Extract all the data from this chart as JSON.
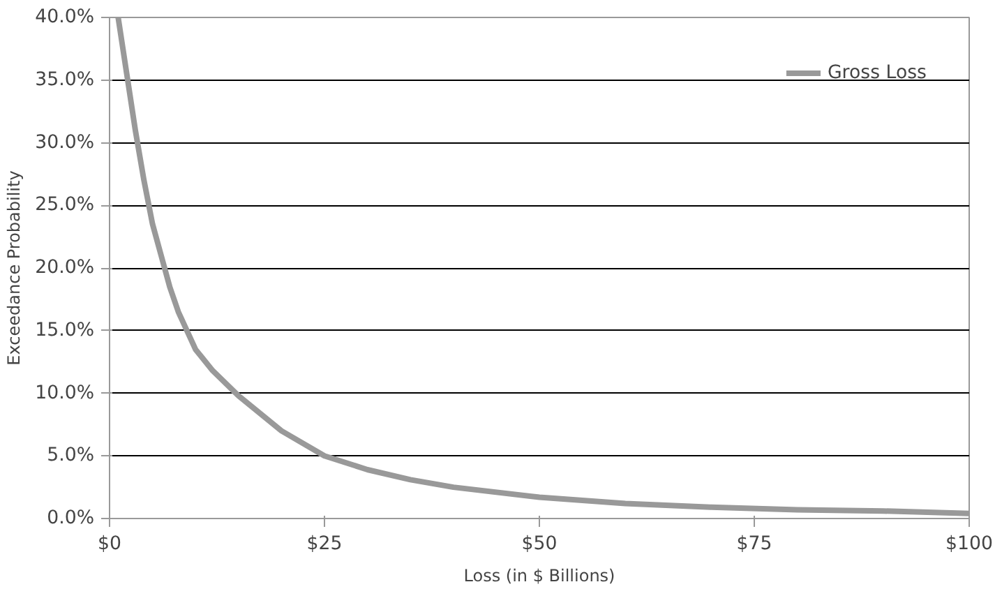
{
  "chart_data": {
    "type": "line",
    "xlabel": "Loss (in $ Billions)",
    "ylabel": "Exceedance Probability",
    "series": [
      {
        "name": "Gross Loss",
        "color": "#999999",
        "x": [
          1,
          2,
          3,
          4,
          5,
          6,
          7,
          8,
          10,
          12,
          15,
          20,
          25,
          30,
          35,
          40,
          50,
          60,
          70,
          80,
          90,
          100
        ],
        "values": [
          40,
          35.5,
          31,
          27,
          23.5,
          21,
          18.5,
          16.5,
          13.5,
          11.8,
          9.8,
          7,
          5,
          3.9,
          3.1,
          2.5,
          1.7,
          1.2,
          0.9,
          0.7,
          0.6,
          0.4
        ]
      }
    ],
    "xlim": [
      0,
      100
    ],
    "ylim": [
      0,
      40
    ],
    "xticks": [
      {
        "value": 0,
        "label": "$0"
      },
      {
        "value": 25,
        "label": "$25"
      },
      {
        "value": 50,
        "label": "$50"
      },
      {
        "value": 75,
        "label": "$75"
      },
      {
        "value": 100,
        "label": "$100"
      }
    ],
    "yticks": [
      {
        "value": 0,
        "label": "0.0%"
      },
      {
        "value": 5,
        "label": "5.0%"
      },
      {
        "value": 10,
        "label": "10.0%"
      },
      {
        "value": 15,
        "label": "15.0%"
      },
      {
        "value": 20,
        "label": "20.0%"
      },
      {
        "value": 25,
        "label": "25.0%"
      },
      {
        "value": 30,
        "label": "30.0%"
      },
      {
        "value": 35,
        "label": "35.0%"
      },
      {
        "value": 40,
        "label": "40.0%"
      }
    ],
    "grid": "y",
    "legend": "top right",
    "marker": "none",
    "line_style": "solid"
  }
}
